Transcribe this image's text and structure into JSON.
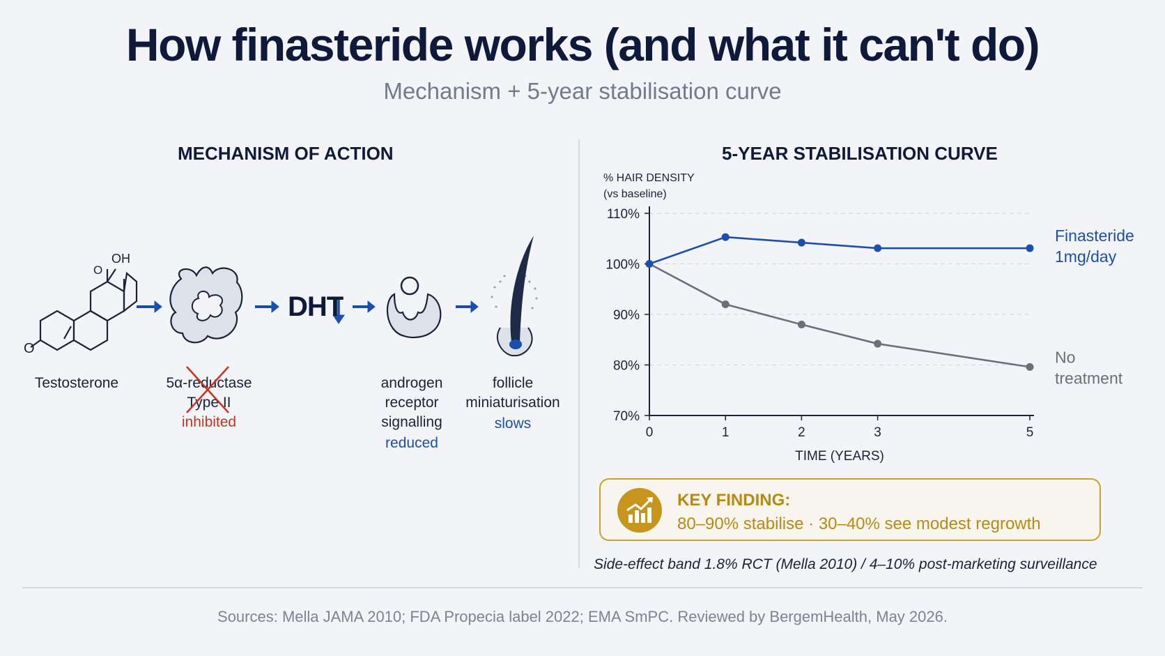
{
  "header": {
    "title": "How finasteride works (and what it can't do)",
    "subtitle": "Mechanism + 5-year stabilisation curve"
  },
  "mechanism": {
    "heading": "MECHANISM OF ACTION",
    "testosterone_label": "Testosterone",
    "oh_label": "OH",
    "o_label": "O",
    "enzyme_label_1": "5α-reductase",
    "enzyme_label_2": "Type II",
    "enzyme_status": "inhibited",
    "dht_label": "DHT",
    "receptor_label_1": "androgen",
    "receptor_label_2": "receptor",
    "receptor_label_3": "signalling",
    "receptor_status": "reduced",
    "follicle_label_1": "follicle",
    "follicle_label_2": "miniaturisation",
    "follicle_status": "slows"
  },
  "chart_data": {
    "type": "line",
    "title": "5-YEAR STABILISATION CURVE",
    "ylabel_line1": "% HAIR DENSITY",
    "ylabel_line2": "(vs baseline)",
    "xlabel": "TIME (YEARS)",
    "x": [
      0,
      1,
      2,
      3,
      5
    ],
    "xticks": [
      "0",
      "1",
      "2",
      "3",
      "5"
    ],
    "yticks": [
      "110%",
      "100%",
      "90%",
      "80%",
      "70%"
    ],
    "ylim": [
      70,
      110
    ],
    "grid": true,
    "series": [
      {
        "name_line1": "Finasteride",
        "name_line2": "1mg/day",
        "color": "#1a4fb0",
        "values": [
          100,
          105.3,
          104.2,
          103.1,
          103.1
        ]
      },
      {
        "name_line1": "No",
        "name_line2": "treatment",
        "color": "#6b6f7a",
        "values": [
          100,
          92,
          88,
          84.2,
          79.6
        ]
      }
    ]
  },
  "finding": {
    "title": "KEY FINDING:",
    "text": "80–90% stabilise · 30–40% see modest regrowth",
    "icon": "trending-up-chart-icon"
  },
  "side_effect": "Side-effect band 1.8% RCT (Mella 2010) / 4–10% post-marketing surveillance",
  "sources": "Sources: Mella JAMA 2010; FDA Propecia label 2022; EMA SmPC. Reviewed by BergemHealth, May 2026.",
  "colors": {
    "navy": "#0f1a3a",
    "accent_blue": "#1a4fb0",
    "inhibit_red": "#c7341e",
    "gold": "#c8951c"
  }
}
